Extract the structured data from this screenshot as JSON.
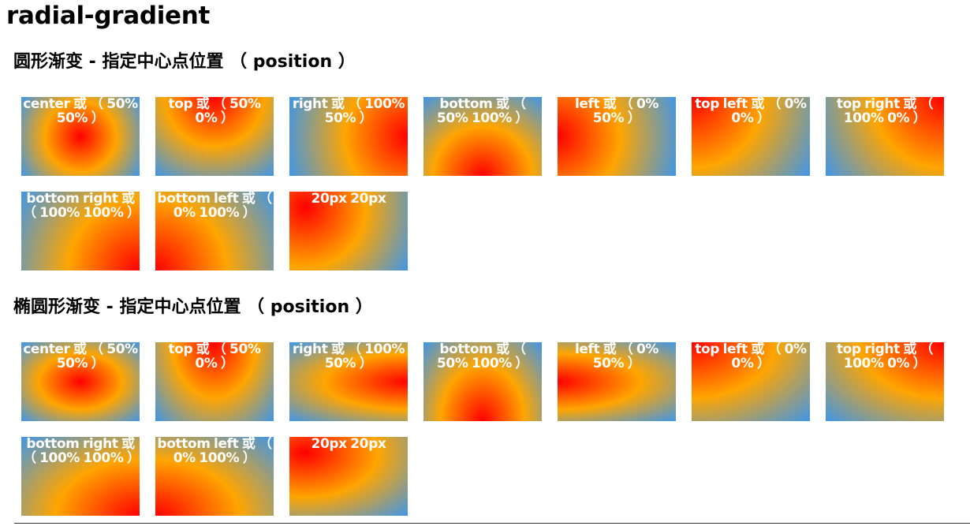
{
  "page": {
    "title": "radial-gradient"
  },
  "colors": {
    "inner": "#ff0000",
    "middle": "#ffa500",
    "outer": "#3f96e8",
    "label": "#ffffff"
  },
  "sections": [
    {
      "title": "圆形渐变 - 指定中心点位置 （ position ）",
      "shape": "circle",
      "items": [
        {
          "label": "center 或 （ 50% 50% ）",
          "position": "center"
        },
        {
          "label": "top 或 （ 50% 0% ）",
          "position": "top"
        },
        {
          "label": "right 或 （ 100% 50% ）",
          "position": "right"
        },
        {
          "label": "bottom 或 （ 50% 100% ）",
          "position": "bottom"
        },
        {
          "label": "left 或 （ 0% 50% ）",
          "position": "left"
        },
        {
          "label": "top left 或 （ 0% 0% ）",
          "position": "top left"
        },
        {
          "label": "top right 或 （ 100% 0% ）",
          "position": "top right"
        },
        {
          "label": "bottom right 或 （ 100% 100% ）",
          "position": "bottom right"
        },
        {
          "label": "bottom left 或 （ 0% 100% ）",
          "position": "bottom left"
        },
        {
          "label": "20px 20px",
          "position": "20px 20px"
        }
      ]
    },
    {
      "title": "椭圆形渐变 - 指定中心点位置 （ position ）",
      "shape": "ellipse",
      "items": [
        {
          "label": "center 或 （ 50% 50% ）",
          "position": "center"
        },
        {
          "label": "top 或 （ 50% 0% ）",
          "position": "top"
        },
        {
          "label": "right 或 （ 100% 50% ）",
          "position": "right"
        },
        {
          "label": "bottom 或 （ 50% 100% ）",
          "position": "bottom"
        },
        {
          "label": "left 或 （ 0% 50% ）",
          "position": "left"
        },
        {
          "label": "top left 或 （ 0% 0% ）",
          "position": "top left"
        },
        {
          "label": "top right 或 （ 100% 0% ）",
          "position": "top right"
        },
        {
          "label": "bottom right 或 （ 100% 100% ）",
          "position": "bottom right"
        },
        {
          "label": "bottom left 或 （ 0% 100% ）",
          "position": "bottom left"
        },
        {
          "label": "20px 20px",
          "position": "20px 20px"
        }
      ]
    }
  ]
}
